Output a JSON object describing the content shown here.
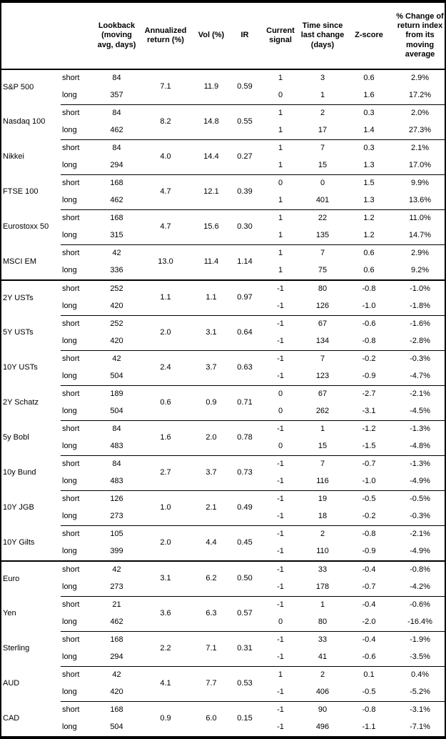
{
  "table": {
    "headers": [
      "",
      "",
      "Lookback\n(moving\navg, days)",
      "Annualized\nreturn (%)",
      "Vol (%)",
      "IR",
      "Current\nsignal",
      "Time since\nlast change\n(days)",
      "Z-score",
      "% Change of\nreturn index\nfrom its\nmoving\naverage"
    ],
    "sections": [
      {
        "assets": [
          {
            "name": "S&P 500",
            "annualized_return": "7.1",
            "vol": "11.9",
            "ir": "0.59",
            "rows": [
              {
                "leg": "short",
                "lookback": "84",
                "signal": "1",
                "time_since": "3",
                "z_score": "0.6",
                "pct_change": "2.9%"
              },
              {
                "leg": "long",
                "lookback": "357",
                "signal": "0",
                "time_since": "1",
                "z_score": "1.6",
                "pct_change": "17.2%"
              }
            ]
          },
          {
            "name": "Nasdaq 100",
            "annualized_return": "8.2",
            "vol": "14.8",
            "ir": "0.55",
            "rows": [
              {
                "leg": "short",
                "lookback": "84",
                "signal": "1",
                "time_since": "2",
                "z_score": "0.3",
                "pct_change": "2.0%"
              },
              {
                "leg": "long",
                "lookback": "462",
                "signal": "1",
                "time_since": "17",
                "z_score": "1.4",
                "pct_change": "27.3%"
              }
            ]
          },
          {
            "name": "Nikkei",
            "annualized_return": "4.0",
            "vol": "14.4",
            "ir": "0.27",
            "rows": [
              {
                "leg": "short",
                "lookback": "84",
                "signal": "1",
                "time_since": "7",
                "z_score": "0.3",
                "pct_change": "2.1%"
              },
              {
                "leg": "long",
                "lookback": "294",
                "signal": "1",
                "time_since": "15",
                "z_score": "1.3",
                "pct_change": "17.0%"
              }
            ]
          },
          {
            "name": "FTSE 100",
            "annualized_return": "4.7",
            "vol": "12.1",
            "ir": "0.39",
            "rows": [
              {
                "leg": "short",
                "lookback": "168",
                "signal": "0",
                "time_since": "0",
                "z_score": "1.5",
                "pct_change": "9.9%"
              },
              {
                "leg": "long",
                "lookback": "462",
                "signal": "1",
                "time_since": "401",
                "z_score": "1.3",
                "pct_change": "13.6%"
              }
            ]
          },
          {
            "name": "Eurostoxx 50",
            "annualized_return": "4.7",
            "vol": "15.6",
            "ir": "0.30",
            "rows": [
              {
                "leg": "short",
                "lookback": "168",
                "signal": "1",
                "time_since": "22",
                "z_score": "1.2",
                "pct_change": "11.0%"
              },
              {
                "leg": "long",
                "lookback": "315",
                "signal": "1",
                "time_since": "135",
                "z_score": "1.2",
                "pct_change": "14.7%"
              }
            ]
          },
          {
            "name": "MSCI EM",
            "annualized_return": "13.0",
            "vol": "11.4",
            "ir": "1.14",
            "rows": [
              {
                "leg": "short",
                "lookback": "42",
                "signal": "1",
                "time_since": "7",
                "z_score": "0.6",
                "pct_change": "2.9%"
              },
              {
                "leg": "long",
                "lookback": "336",
                "signal": "1",
                "time_since": "75",
                "z_score": "0.6",
                "pct_change": "9.2%"
              }
            ]
          }
        ]
      },
      {
        "assets": [
          {
            "name": "2Y USTs",
            "annualized_return": "1.1",
            "vol": "1.1",
            "ir": "0.97",
            "rows": [
              {
                "leg": "short",
                "lookback": "252",
                "signal": "-1",
                "time_since": "80",
                "z_score": "-0.8",
                "pct_change": "-1.0%"
              },
              {
                "leg": "long",
                "lookback": "420",
                "signal": "-1",
                "time_since": "126",
                "z_score": "-1.0",
                "pct_change": "-1.8%"
              }
            ]
          },
          {
            "name": "5Y USTs",
            "annualized_return": "2.0",
            "vol": "3.1",
            "ir": "0.64",
            "rows": [
              {
                "leg": "short",
                "lookback": "252",
                "signal": "-1",
                "time_since": "67",
                "z_score": "-0.6",
                "pct_change": "-1.6%"
              },
              {
                "leg": "long",
                "lookback": "420",
                "signal": "-1",
                "time_since": "134",
                "z_score": "-0.8",
                "pct_change": "-2.8%"
              }
            ]
          },
          {
            "name": "10Y USTs",
            "annualized_return": "2.4",
            "vol": "3.7",
            "ir": "0.63",
            "rows": [
              {
                "leg": "short",
                "lookback": "42",
                "signal": "-1",
                "time_since": "7",
                "z_score": "-0.2",
                "pct_change": "-0.3%"
              },
              {
                "leg": "long",
                "lookback": "504",
                "signal": "-1",
                "time_since": "123",
                "z_score": "-0.9",
                "pct_change": "-4.7%"
              }
            ]
          },
          {
            "name": "2Y Schatz",
            "annualized_return": "0.6",
            "vol": "0.9",
            "ir": "0.71",
            "rows": [
              {
                "leg": "short",
                "lookback": "189",
                "signal": "0",
                "time_since": "67",
                "z_score": "-2.7",
                "pct_change": "-2.1%"
              },
              {
                "leg": "long",
                "lookback": "504",
                "signal": "0",
                "time_since": "262",
                "z_score": "-3.1",
                "pct_change": "-4.5%"
              }
            ]
          },
          {
            "name": "5y Bobl",
            "annualized_return": "1.6",
            "vol": "2.0",
            "ir": "0.78",
            "rows": [
              {
                "leg": "short",
                "lookback": "84",
                "signal": "-1",
                "time_since": "1",
                "z_score": "-1.2",
                "pct_change": "-1.3%"
              },
              {
                "leg": "long",
                "lookback": "483",
                "signal": "0",
                "time_since": "15",
                "z_score": "-1.5",
                "pct_change": "-4.8%"
              }
            ]
          },
          {
            "name": "10y Bund",
            "annualized_return": "2.7",
            "vol": "3.7",
            "ir": "0.73",
            "rows": [
              {
                "leg": "short",
                "lookback": "84",
                "signal": "-1",
                "time_since": "7",
                "z_score": "-0.7",
                "pct_change": "-1.3%"
              },
              {
                "leg": "long",
                "lookback": "483",
                "signal": "-1",
                "time_since": "116",
                "z_score": "-1.0",
                "pct_change": "-4.9%"
              }
            ]
          },
          {
            "name": "10Y JGB",
            "annualized_return": "1.0",
            "vol": "2.1",
            "ir": "0.49",
            "rows": [
              {
                "leg": "short",
                "lookback": "126",
                "signal": "-1",
                "time_since": "19",
                "z_score": "-0.5",
                "pct_change": "-0.5%"
              },
              {
                "leg": "long",
                "lookback": "273",
                "signal": "-1",
                "time_since": "18",
                "z_score": "-0.2",
                "pct_change": "-0.3%"
              }
            ]
          },
          {
            "name": "10Y Gilts",
            "annualized_return": "2.0",
            "vol": "4.4",
            "ir": "0.45",
            "rows": [
              {
                "leg": "short",
                "lookback": "105",
                "signal": "-1",
                "time_since": "2",
                "z_score": "-0.8",
                "pct_change": "-2.1%"
              },
              {
                "leg": "long",
                "lookback": "399",
                "signal": "-1",
                "time_since": "110",
                "z_score": "-0.9",
                "pct_change": "-4.9%"
              }
            ]
          }
        ]
      },
      {
        "assets": [
          {
            "name": "Euro",
            "annualized_return": "3.1",
            "vol": "6.2",
            "ir": "0.50",
            "rows": [
              {
                "leg": "short",
                "lookback": "42",
                "signal": "-1",
                "time_since": "33",
                "z_score": "-0.4",
                "pct_change": "-0.8%"
              },
              {
                "leg": "long",
                "lookback": "273",
                "signal": "-1",
                "time_since": "178",
                "z_score": "-0.7",
                "pct_change": "-4.2%"
              }
            ]
          },
          {
            "name": "Yen",
            "annualized_return": "3.6",
            "vol": "6.3",
            "ir": "0.57",
            "rows": [
              {
                "leg": "short",
                "lookback": "21",
                "signal": "-1",
                "time_since": "1",
                "z_score": "-0.4",
                "pct_change": "-0.6%"
              },
              {
                "leg": "long",
                "lookback": "462",
                "signal": "0",
                "time_since": "80",
                "z_score": "-2.0",
                "pct_change": "-16.4%"
              }
            ]
          },
          {
            "name": "Sterling",
            "annualized_return": "2.2",
            "vol": "7.1",
            "ir": "0.31",
            "rows": [
              {
                "leg": "short",
                "lookback": "168",
                "signal": "-1",
                "time_since": "33",
                "z_score": "-0.4",
                "pct_change": "-1.9%"
              },
              {
                "leg": "long",
                "lookback": "294",
                "signal": "-1",
                "time_since": "41",
                "z_score": "-0.6",
                "pct_change": "-3.5%"
              }
            ]
          },
          {
            "name": "AUD",
            "annualized_return": "4.1",
            "vol": "7.7",
            "ir": "0.53",
            "rows": [
              {
                "leg": "short",
                "lookback": "42",
                "signal": "1",
                "time_since": "2",
                "z_score": "0.1",
                "pct_change": "0.4%"
              },
              {
                "leg": "long",
                "lookback": "420",
                "signal": "-1",
                "time_since": "406",
                "z_score": "-0.5",
                "pct_change": "-5.2%"
              }
            ]
          },
          {
            "name": "CAD",
            "annualized_return": "0.9",
            "vol": "6.0",
            "ir": "0.15",
            "rows": [
              {
                "leg": "short",
                "lookback": "168",
                "signal": "-1",
                "time_since": "90",
                "z_score": "-0.8",
                "pct_change": "-3.1%"
              },
              {
                "leg": "long",
                "lookback": "504",
                "signal": "-1",
                "time_since": "496",
                "z_score": "-1.1",
                "pct_change": "-7.1%"
              }
            ]
          }
        ]
      }
    ]
  }
}
